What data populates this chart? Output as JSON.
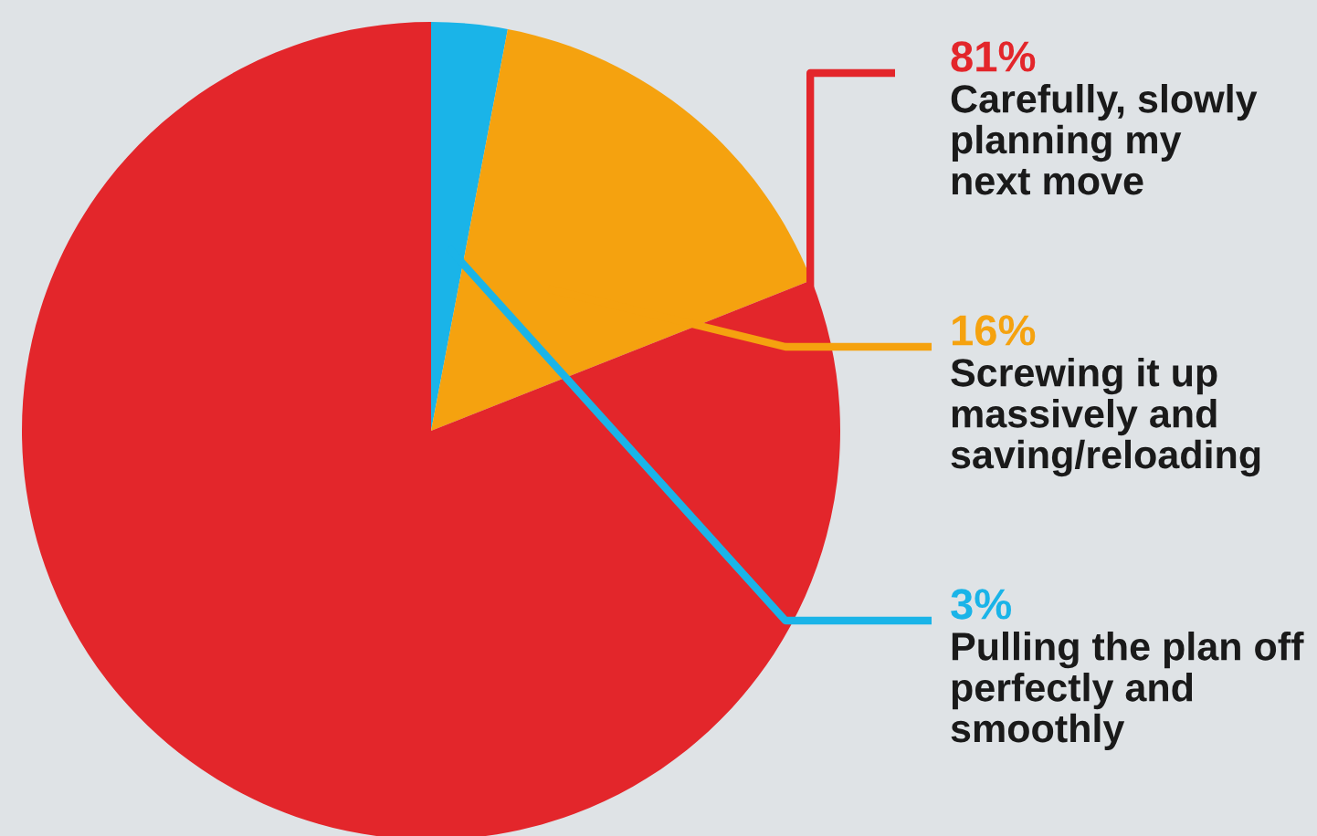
{
  "chart_data": {
    "type": "pie",
    "categories": [
      "Pulling the plan off\nperfectly and\nsmoothly",
      "Screwing it up\nmassively and\nsaving/reloading",
      "Carefully, slowly\nplanning my\nnext move"
    ],
    "values": [
      3,
      16,
      81
    ],
    "colors": [
      "#1ab4e8",
      "#f5a20f",
      "#e3262b"
    ],
    "value_labels": [
      "3%",
      "16%",
      "81%"
    ],
    "legend": false
  }
}
